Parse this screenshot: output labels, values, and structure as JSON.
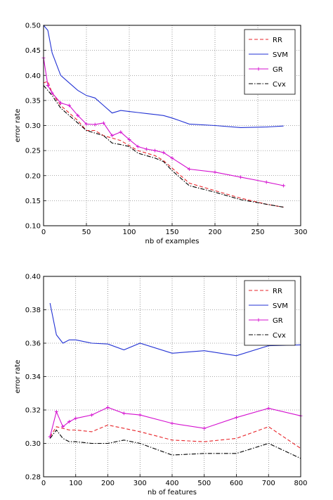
{
  "chart_data": [
    {
      "type": "line",
      "xlabel": "nb of examples",
      "ylabel": "error rate",
      "xlim": [
        0,
        300
      ],
      "ylim": [
        0.1,
        0.5
      ],
      "xticks": [
        0,
        50,
        100,
        150,
        200,
        250,
        300
      ],
      "yticks": [
        0.1,
        0.15,
        0.2,
        0.25,
        0.3,
        0.35,
        0.4,
        0.45,
        0.5
      ],
      "xtick_labels": [
        "0",
        "50",
        "100",
        "150",
        "200",
        "250",
        "300"
      ],
      "ytick_labels": [
        "0.10",
        "0.15",
        "0.20",
        "0.25",
        "0.30",
        "0.35",
        "0.40",
        "0.45",
        "0.50"
      ],
      "grid": true,
      "legend_position": "top-right",
      "series": [
        {
          "name": "RR",
          "color": "#e8262b",
          "dash": "dashed",
          "x": [
            0,
            5,
            10,
            20,
            30,
            40,
            50,
            60,
            70,
            80,
            90,
            100,
            110,
            120,
            130,
            140,
            150,
            170,
            200,
            230,
            260,
            280
          ],
          "y": [
            0.385,
            0.388,
            0.365,
            0.34,
            0.325,
            0.31,
            0.29,
            0.29,
            0.28,
            0.275,
            0.27,
            0.26,
            0.25,
            0.245,
            0.24,
            0.23,
            0.215,
            0.185,
            0.17,
            0.155,
            0.143,
            0.137
          ]
        },
        {
          "name": "SVM",
          "color": "#2232d4",
          "dash": "solid",
          "x": [
            0,
            5,
            10,
            20,
            30,
            40,
            50,
            60,
            70,
            80,
            90,
            100,
            110,
            120,
            130,
            140,
            150,
            170,
            200,
            230,
            260,
            280
          ],
          "y": [
            0.5,
            0.49,
            0.445,
            0.4,
            0.385,
            0.37,
            0.36,
            0.355,
            0.34,
            0.325,
            0.33,
            0.328,
            0.326,
            0.324,
            0.322,
            0.32,
            0.315,
            0.303,
            0.3,
            0.296,
            0.297,
            0.299
          ]
        },
        {
          "name": "GR",
          "color": "#d40fcf",
          "dash": "solid",
          "x": [
            0,
            5,
            10,
            20,
            30,
            40,
            50,
            60,
            70,
            80,
            90,
            100,
            110,
            120,
            130,
            140,
            150,
            170,
            200,
            230,
            260,
            280
          ],
          "y": [
            0.435,
            0.38,
            0.365,
            0.345,
            0.34,
            0.32,
            0.303,
            0.302,
            0.305,
            0.28,
            0.287,
            0.272,
            0.258,
            0.253,
            0.25,
            0.246,
            0.235,
            0.213,
            0.207,
            0.197,
            0.187,
            0.18
          ]
        },
        {
          "name": "Cvx",
          "color": "#000000",
          "dash": "dashdot",
          "x": [
            0,
            5,
            10,
            20,
            30,
            40,
            50,
            60,
            70,
            80,
            90,
            100,
            110,
            120,
            130,
            140,
            150,
            170,
            200,
            230,
            260,
            280
          ],
          "y": [
            0.38,
            0.37,
            0.36,
            0.335,
            0.32,
            0.305,
            0.29,
            0.285,
            0.28,
            0.265,
            0.262,
            0.258,
            0.245,
            0.24,
            0.235,
            0.228,
            0.21,
            0.18,
            0.167,
            0.152,
            0.143,
            0.137
          ]
        }
      ]
    },
    {
      "type": "line",
      "xlabel": "nb of features",
      "ylabel": "error rate",
      "xlim": [
        0,
        800
      ],
      "ylim": [
        0.28,
        0.4
      ],
      "xticks": [
        0,
        100,
        200,
        300,
        400,
        500,
        600,
        700,
        800
      ],
      "yticks": [
        0.28,
        0.3,
        0.32,
        0.34,
        0.36,
        0.38,
        0.4
      ],
      "xtick_labels": [
        "0",
        "100",
        "200",
        "300",
        "400",
        "500",
        "600",
        "700",
        "800"
      ],
      "ytick_labels": [
        "0.28",
        "0.30",
        "0.32",
        "0.34",
        "0.36",
        "0.38",
        "0.40"
      ],
      "grid": true,
      "legend_position": "top-right",
      "series": [
        {
          "name": "RR",
          "color": "#e8262b",
          "dash": "dashed",
          "x": [
            20,
            40,
            60,
            80,
            100,
            150,
            200,
            250,
            300,
            400,
            500,
            600,
            700,
            800
          ],
          "y": [
            0.304,
            0.31,
            0.309,
            0.308,
            0.308,
            0.307,
            0.311,
            0.309,
            0.307,
            0.302,
            0.301,
            0.303,
            0.31,
            0.297
          ]
        },
        {
          "name": "SVM",
          "color": "#2232d4",
          "dash": "solid",
          "x": [
            20,
            40,
            60,
            80,
            100,
            150,
            200,
            250,
            300,
            400,
            500,
            600,
            700,
            800
          ],
          "y": [
            0.384,
            0.365,
            0.36,
            0.362,
            0.362,
            0.36,
            0.3595,
            0.356,
            0.36,
            0.354,
            0.3555,
            0.3525,
            0.3585,
            0.359
          ]
        },
        {
          "name": "GR",
          "color": "#d40fcf",
          "dash": "solid",
          "x": [
            20,
            40,
            60,
            80,
            100,
            150,
            200,
            250,
            300,
            400,
            500,
            600,
            700,
            800
          ],
          "y": [
            0.304,
            0.319,
            0.31,
            0.313,
            0.315,
            0.317,
            0.3215,
            0.318,
            0.317,
            0.312,
            0.309,
            0.3155,
            0.321,
            0.3165
          ]
        },
        {
          "name": "Cvx",
          "color": "#000000",
          "dash": "dashdot",
          "x": [
            20,
            40,
            60,
            80,
            100,
            150,
            200,
            250,
            300,
            400,
            500,
            600,
            700,
            800
          ],
          "y": [
            0.303,
            0.308,
            0.303,
            0.301,
            0.301,
            0.3,
            0.3,
            0.302,
            0.3,
            0.293,
            0.294,
            0.294,
            0.3,
            0.291
          ]
        }
      ]
    }
  ]
}
